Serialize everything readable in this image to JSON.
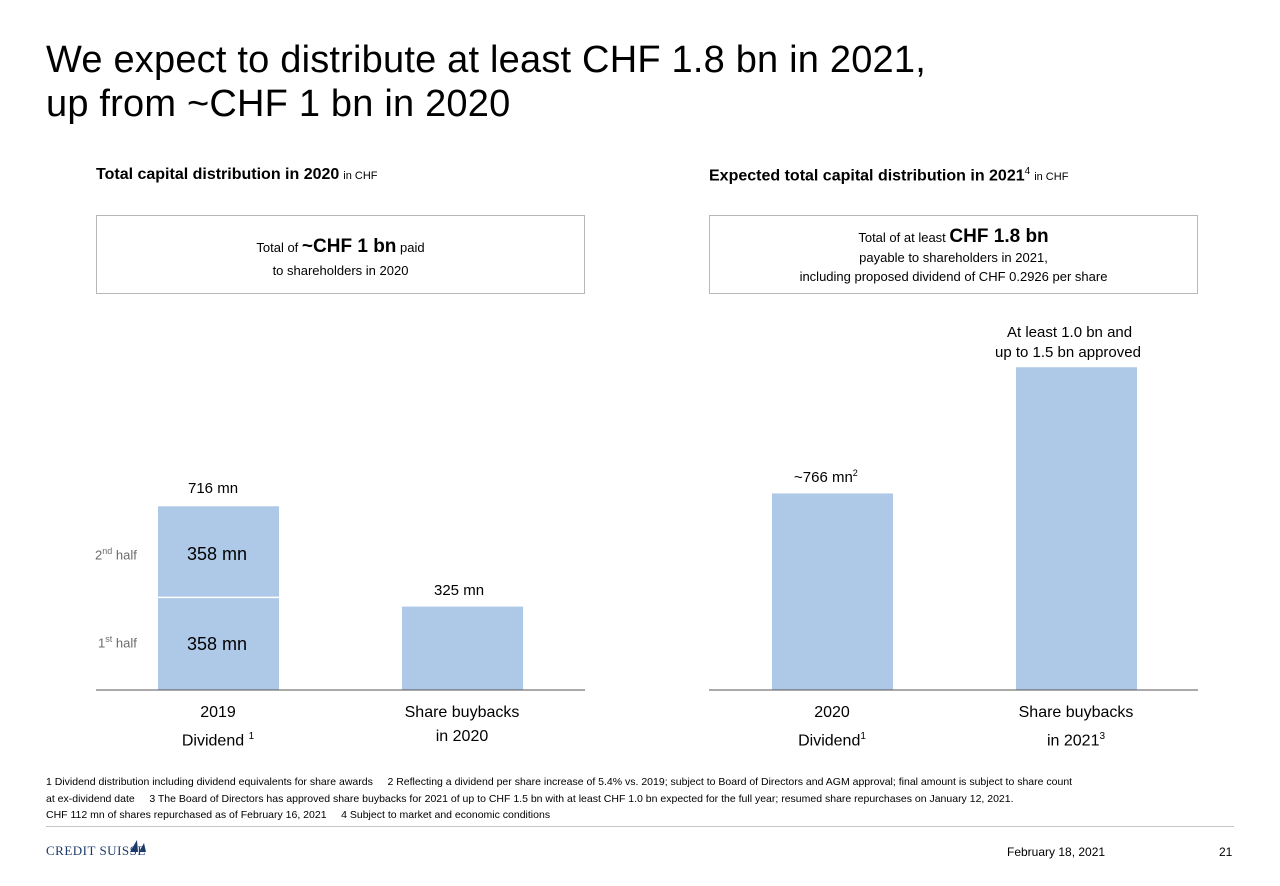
{
  "title": {
    "line1": "We expect to distribute at least CHF 1.8 bn in 2021,",
    "line2": "up from ~CHF 1 bn in 2020"
  },
  "left": {
    "heading": "Total capital distribution in 2020",
    "unit": "in CHF",
    "box": {
      "prefix": "Total of",
      "amount": "~CHF 1 bn",
      "suffix": "paid",
      "line2": "to shareholders in 2020"
    }
  },
  "right": {
    "heading": "Expected total capital distribution in 2021",
    "heading_sup": "4",
    "unit": "in CHF",
    "box": {
      "prefix": "Total of at least",
      "amount": "CHF 1.8 bn",
      "line2": "payable to shareholders in 2021,",
      "line3": "including proposed dividend of CHF 0.2926 per share"
    }
  },
  "chart_data": [
    {
      "type": "bar",
      "title": "Total capital distribution in 2020",
      "unit": "mn CHF",
      "categories": [
        "2019 Dividend",
        "Share buybacks in 2020"
      ],
      "series": [
        {
          "name": "1st half",
          "values": [
            358,
            325
          ]
        },
        {
          "name": "2nd half",
          "values": [
            358,
            0
          ]
        }
      ],
      "totals": [
        716,
        325
      ],
      "labels": {
        "total_2019": "716 mn",
        "first_half": "358 mn",
        "second_half": "358 mn",
        "buybacks": "325 mn",
        "half_first": "1",
        "half_first_sup": "st",
        "half_second": "2",
        "half_second_sup": "nd",
        "half_word": "half"
      },
      "ylim": [
        0,
        1450
      ]
    },
    {
      "type": "bar",
      "title": "Expected total capital distribution in 2021",
      "unit": "mn CHF",
      "categories": [
        "2020 Dividend",
        "Share buybacks in 2021"
      ],
      "values": [
        766,
        1500
      ],
      "labels": {
        "dividend": "~766 mn",
        "dividend_sup": "2",
        "buybacks_line1": "At least 1.0 bn and",
        "buybacks_line2": "up to 1.5 bn approved"
      },
      "ylim": [
        0,
        1450
      ]
    }
  ],
  "xaxis": {
    "left": [
      {
        "line1": "2019",
        "line2": "Dividend",
        "sup": "1"
      },
      {
        "line1": "Share buybacks",
        "line2": "in 2020",
        "sup": ""
      }
    ],
    "right": [
      {
        "line1": "2020",
        "line2": "Dividend",
        "sup": "1"
      },
      {
        "line1": "Share buybacks",
        "line2": "in 2021",
        "sup": "3"
      }
    ]
  },
  "footnotes": {
    "line1": "1 Dividend distribution including dividend equivalents for share awards     2 Reflecting a dividend per share increase of 5.4% vs. 2019; subject to Board of Directors and AGM approval; final amount is subject to share count",
    "line2": "at ex-dividend date     3 The Board of Directors has approved share buybacks for 2021 of up to CHF 1.5 bn with at least CHF 1.0 bn expected for the full year; resumed share repurchases on January 12, 2021.",
    "line3": "CHF 112 mn of shares repurchased as of February 16, 2021     4 Subject to market and economic conditions"
  },
  "footer": {
    "brand": "CREDIT SUISSE",
    "date": "February 18, 2021",
    "page": "21"
  },
  "colors": {
    "bar": "#aec8e8",
    "axis": "#555555",
    "box_border": "#b7b7b7",
    "brand": "#1c3a6b"
  }
}
